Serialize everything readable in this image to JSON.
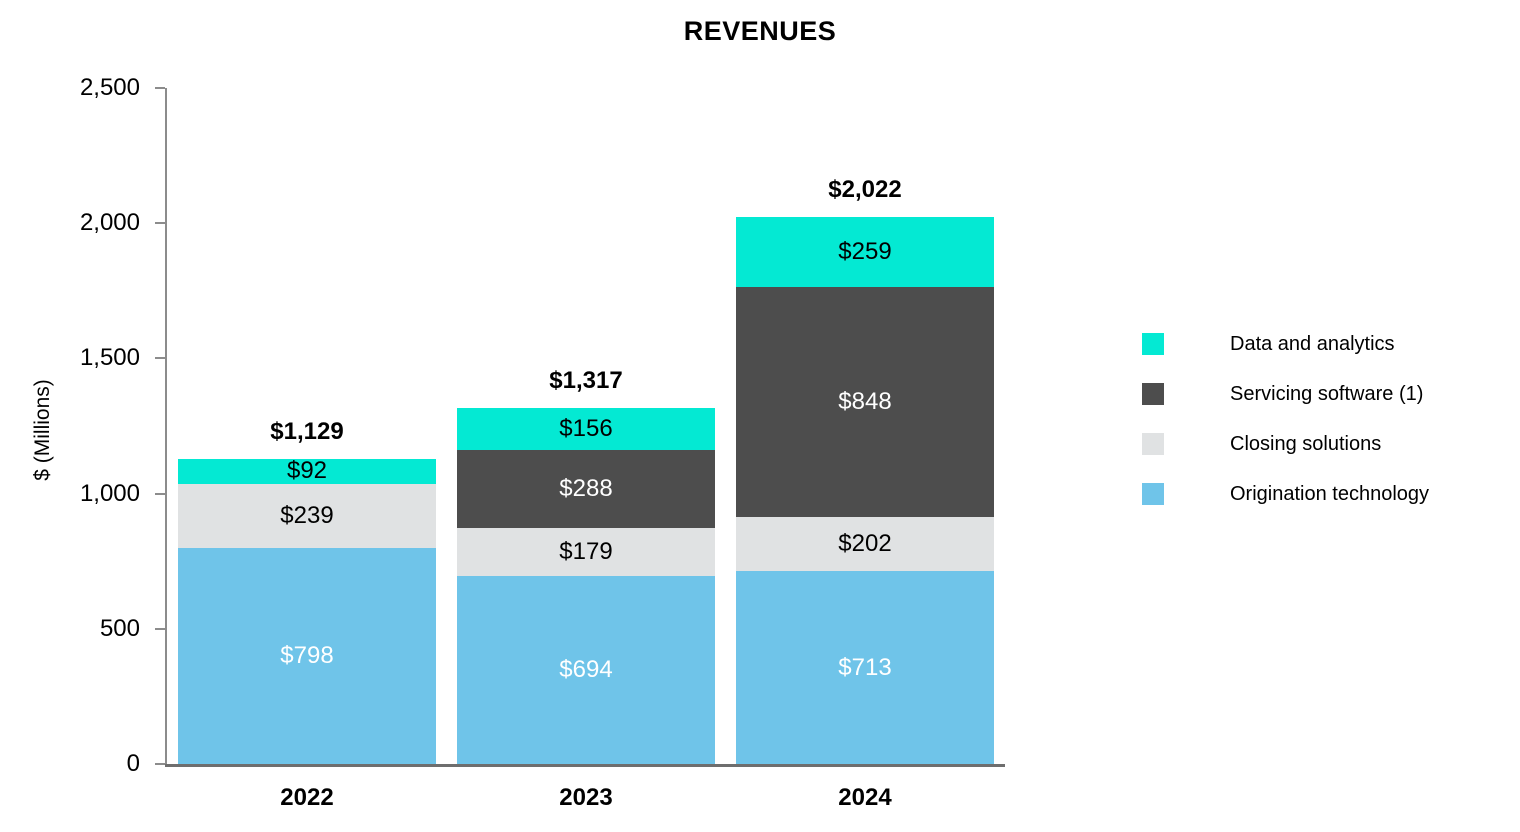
{
  "chart_data": {
    "type": "bar",
    "stacked": true,
    "title": "REVENUES",
    "xlabel": "",
    "ylabel": "$ (Millions)",
    "ylim": [
      0,
      2500
    ],
    "grid": false,
    "yticks": [
      {
        "value": 0,
        "label": "0"
      },
      {
        "value": 500,
        "label": "500"
      },
      {
        "value": 1000,
        "label": "1,000"
      },
      {
        "value": 1500,
        "label": "1,500"
      },
      {
        "value": 2000,
        "label": "2,000"
      },
      {
        "value": 2500,
        "label": "2,500"
      }
    ],
    "categories": [
      "2022",
      "2023",
      "2024"
    ],
    "series": [
      {
        "name": "Origination technology",
        "color": "#6FC4E9",
        "label_color": "#FFFFFF",
        "values": [
          798,
          694,
          713
        ]
      },
      {
        "name": "Closing solutions",
        "color": "#E0E2E3",
        "label_color": "#000000",
        "values": [
          239,
          179,
          202
        ]
      },
      {
        "name": "Servicing software (1)",
        "color": "#4D4D4D",
        "label_color": "#FFFFFF",
        "values": [
          0,
          288,
          848
        ]
      },
      {
        "name": "Data and analytics",
        "color": "#04E9D3",
        "label_color": "#000000",
        "values": [
          92,
          156,
          259
        ]
      }
    ],
    "segment_labels": [
      [
        "$798",
        "$694",
        "$713"
      ],
      [
        "$239",
        "$179",
        "$202"
      ],
      [
        "",
        "$288",
        "$848"
      ],
      [
        "$92",
        "$156",
        "$259"
      ]
    ],
    "totals": [
      {
        "label": "$1,129",
        "value": 1129
      },
      {
        "label": "$1,317",
        "value": 1317
      },
      {
        "label": "$2,022",
        "value": 2022
      }
    ],
    "legend": {
      "position": "right",
      "items": [
        {
          "label": "Data and analytics",
          "color": "#04E9D3"
        },
        {
          "label": "Servicing software (1)",
          "color": "#4D4D4D"
        },
        {
          "label": "Closing solutions",
          "color": "#E0E2E3"
        },
        {
          "label": "Origination technology",
          "color": "#6FC4E9"
        }
      ]
    },
    "axis_color": "#8C8C8C"
  }
}
